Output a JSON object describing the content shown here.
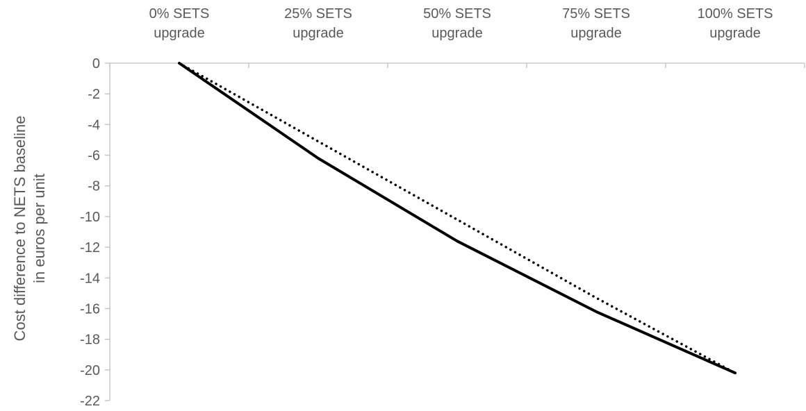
{
  "chart_data": {
    "type": "line",
    "categories": [
      [
        "0% SETS",
        "upgrade"
      ],
      [
        "25% SETS",
        "upgrade"
      ],
      [
        "50% SETS",
        "upgrade"
      ],
      [
        "75% SETS",
        "upgrade"
      ],
      [
        "100% SETS",
        "upgrade"
      ]
    ],
    "ylabel": [
      "Cost difference to NETS baseline",
      "in euros per unit"
    ],
    "ylim": [
      -22,
      0
    ],
    "yticks": [
      0,
      -2,
      -4,
      -6,
      -8,
      -10,
      -12,
      -14,
      -16,
      -18,
      -20,
      -22
    ],
    "x_axis_position": "top",
    "grid": false,
    "legend": "none",
    "series": [
      {
        "style": "solid",
        "color": "#000000",
        "values": [
          0,
          -6.2,
          -11.6,
          -16.2,
          -20.2
        ]
      },
      {
        "style": "dotted",
        "color": "#000000",
        "values": [
          0,
          -5.1,
          -10.2,
          -15.3,
          -20.2
        ]
      }
    ]
  }
}
